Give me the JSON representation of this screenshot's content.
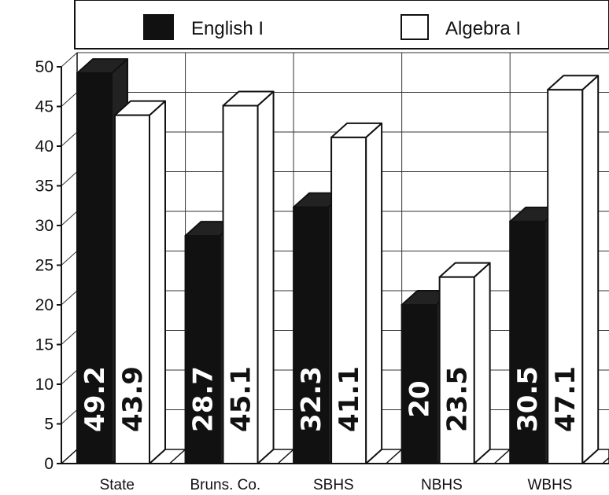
{
  "chart_data": {
    "type": "bar",
    "categories": [
      "State",
      "Bruns. Co.",
      "SBHS",
      "NBHS",
      "WBHS"
    ],
    "series": [
      {
        "name": "English I",
        "values": [
          49.2,
          28.7,
          32.3,
          20,
          30.5
        ],
        "color": "#111111",
        "label_color": "#ffffff"
      },
      {
        "name": "Algebra I",
        "values": [
          43.9,
          45.1,
          41.1,
          23.5,
          47.1
        ],
        "color": "#ffffff",
        "label_color": "#111111"
      }
    ],
    "value_labels": [
      [
        "49.2",
        "28.7",
        "32.3",
        "20",
        "30.5"
      ],
      [
        "43.9",
        "45.1",
        "41.1",
        "23.5",
        "47.1"
      ]
    ],
    "yticks": [
      "0",
      "5",
      "10",
      "15",
      "20",
      "25",
      "30",
      "35",
      "40",
      "45",
      "50"
    ],
    "ylim": [
      0,
      50
    ],
    "grid": true,
    "three_d": true,
    "legend_position": "top",
    "title": "",
    "xlabel": "",
    "ylabel": ""
  }
}
